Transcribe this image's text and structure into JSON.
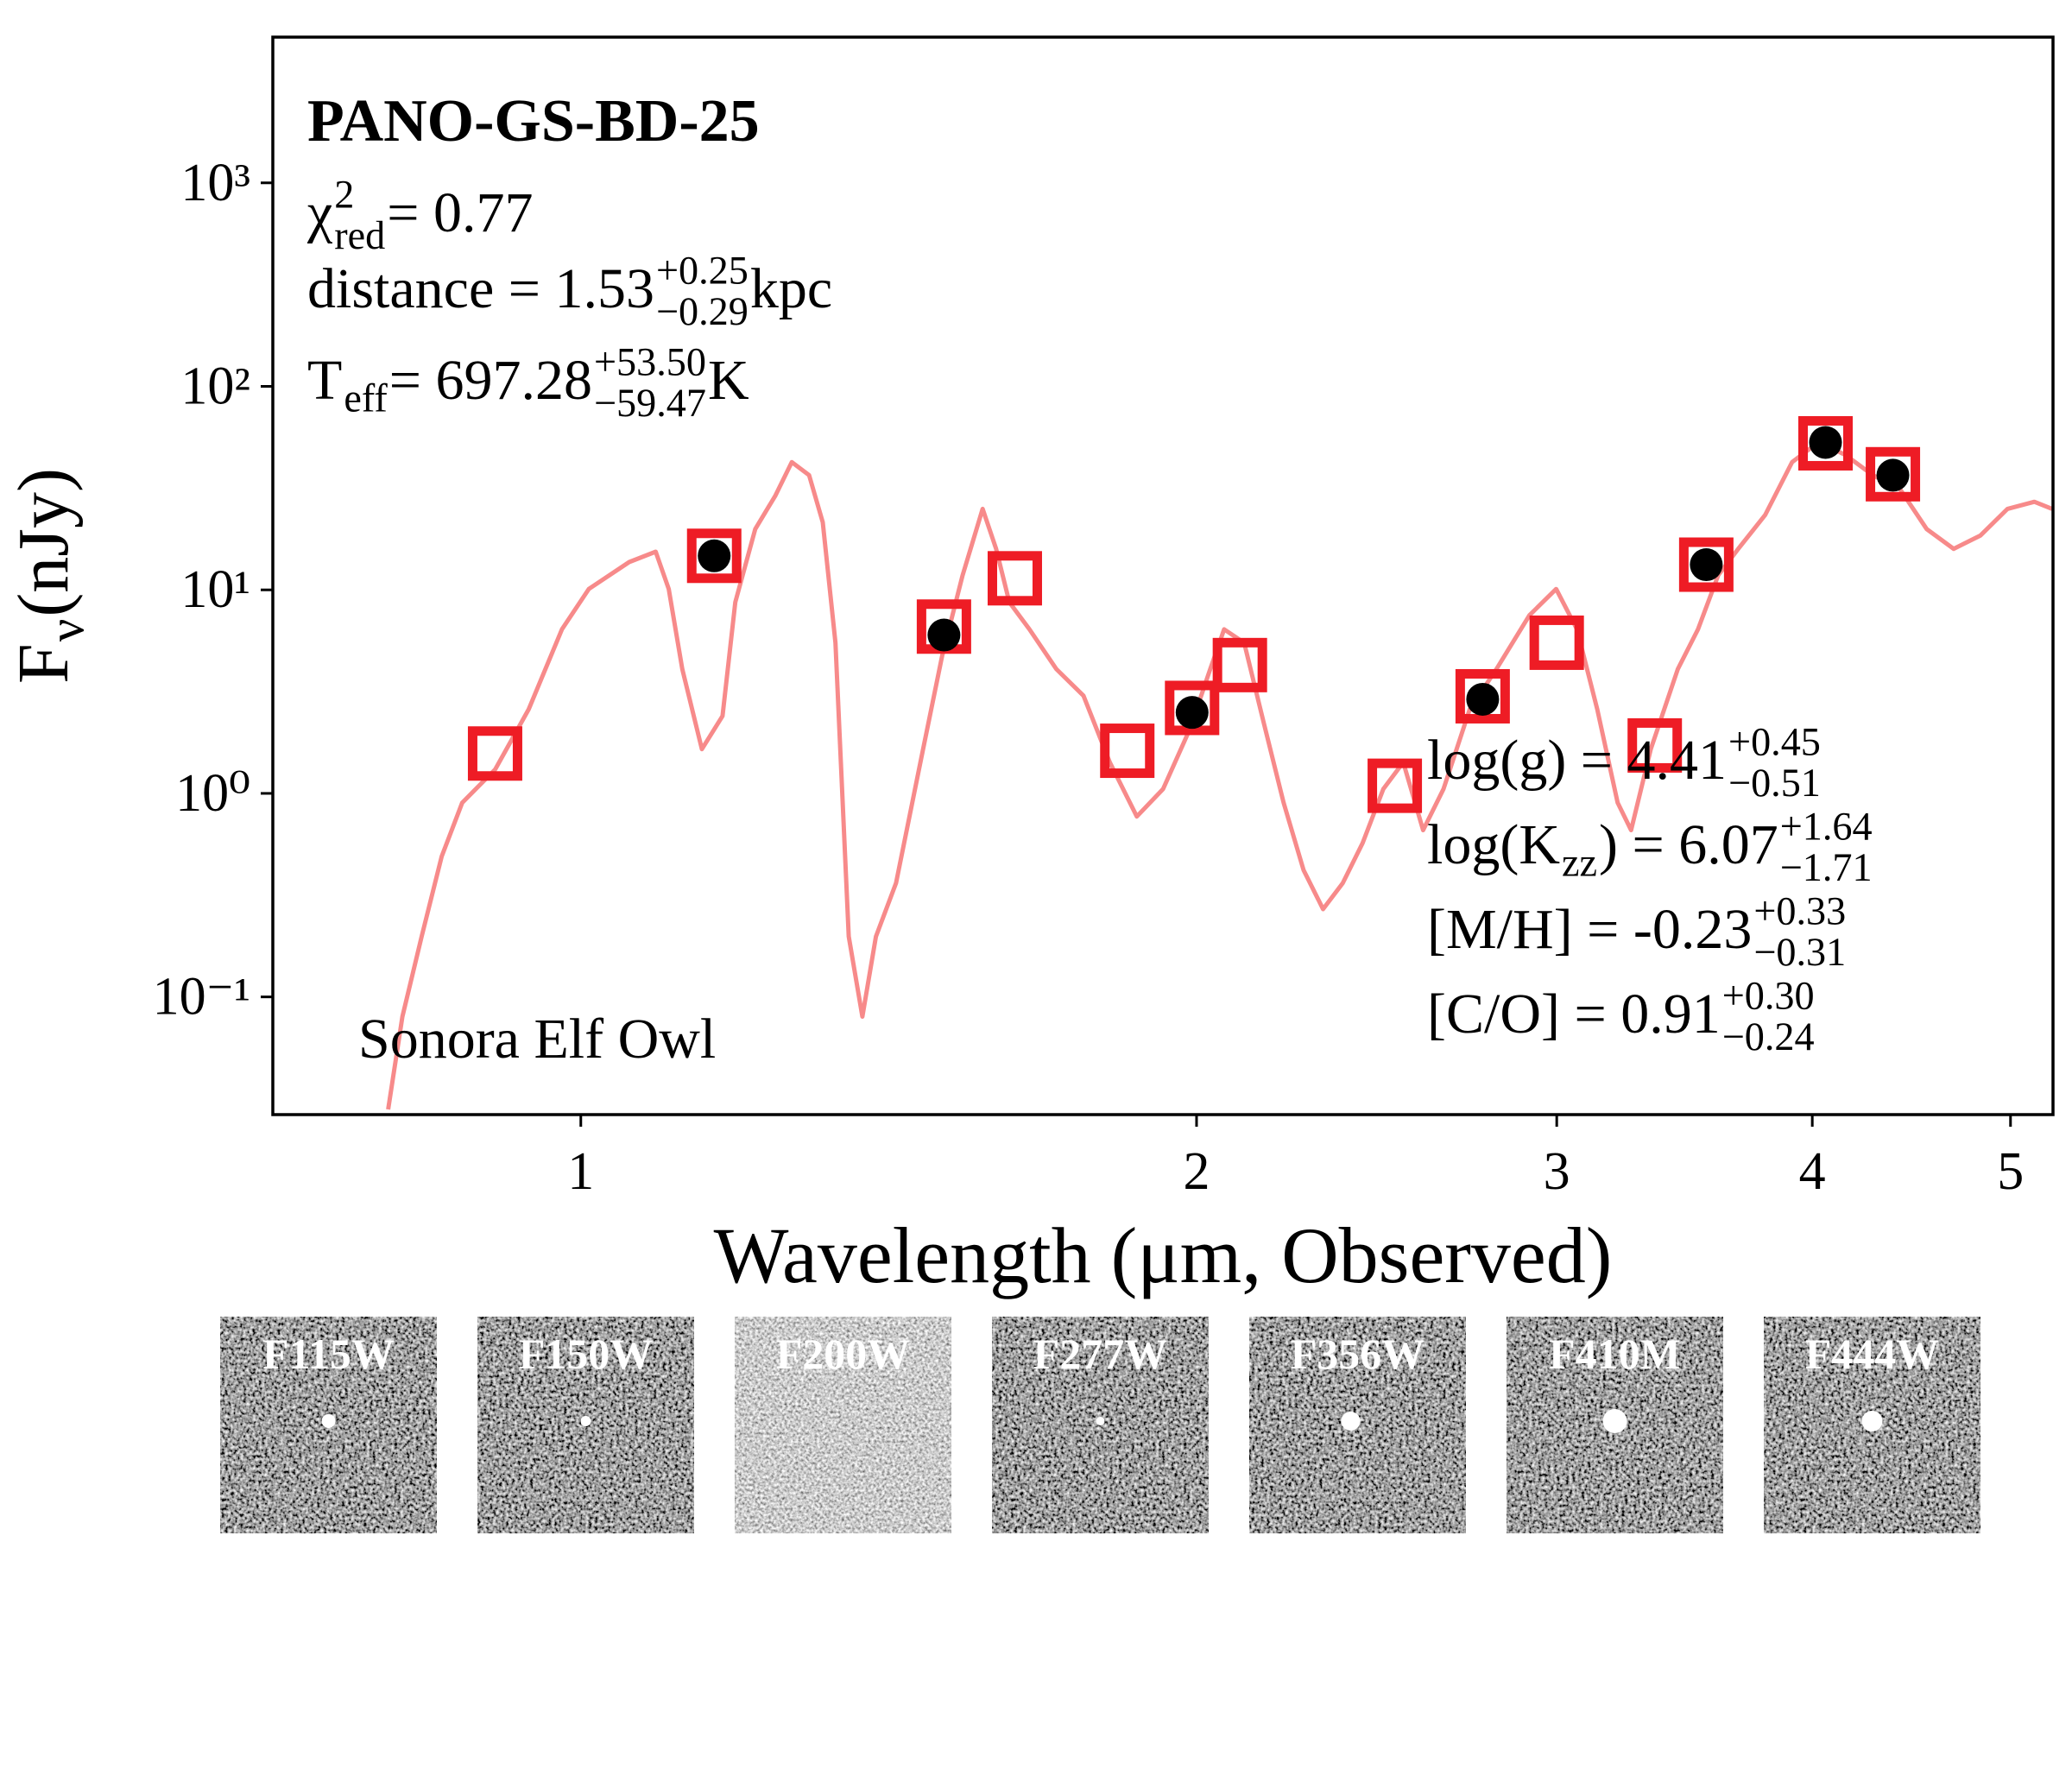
{
  "chart_data": {
    "type": "line",
    "title": "PANO-GS-BD-25",
    "xlabel": [
      {
        "t": "Wavelength ("
      },
      {
        "t": "μm"
      },
      {
        "t": ", Observed)"
      }
    ],
    "ylabel": [
      {
        "t": "F"
      },
      {
        "sub": "ν"
      },
      {
        "t": " (nJy)"
      }
    ],
    "xscale": "log",
    "yscale": "log",
    "xlim": [
      0.707,
      5.245
    ],
    "ylim": [
      0.0264,
      5200
    ],
    "xticks": [
      1,
      2,
      3,
      4,
      5
    ],
    "yticks": [
      {
        "value": 0.1,
        "label": "10⁻¹"
      },
      {
        "value": 1,
        "label": "10⁰"
      },
      {
        "value": 10,
        "label": "10¹"
      },
      {
        "value": 100,
        "label": "10²"
      },
      {
        "value": 1000,
        "label": "10³"
      }
    ],
    "grid": false,
    "series": [
      {
        "type": "line",
        "color": "#f67575",
        "x": [
          0.805,
          0.818,
          0.836,
          0.855,
          0.875,
          0.908,
          0.943,
          0.979,
          1.009,
          1.056,
          1.088,
          1.104,
          1.121,
          1.146,
          1.173,
          1.19,
          1.217,
          1.245,
          1.268,
          1.293,
          1.313,
          1.332,
          1.352,
          1.373,
          1.394,
          1.426,
          1.47,
          1.502,
          1.537,
          1.572,
          1.596,
          1.62,
          1.657,
          1.708,
          1.761,
          1.814,
          1.87,
          1.926,
          1.985,
          2.031,
          2.063,
          2.11,
          2.157,
          2.206,
          2.256,
          2.306,
          2.358,
          2.411,
          2.468,
          2.524,
          2.581,
          2.641,
          2.72,
          2.803,
          2.909,
          2.998,
          3.069,
          3.14,
          3.213,
          3.262,
          3.335,
          3.438,
          3.517,
          3.598,
          3.68,
          3.793,
          3.91,
          4.03,
          4.154,
          4.282,
          4.414,
          4.55,
          4.69,
          4.834,
          4.983,
          5.136,
          5.24
        ],
        "values": [
          0.028,
          0.08,
          0.198,
          0.49,
          0.9,
          1.31,
          2.59,
          6.4,
          10.1,
          13.7,
          15.4,
          10.1,
          4.08,
          1.65,
          2.4,
          8.7,
          19.9,
          29.1,
          42.4,
          36.6,
          21.5,
          5.5,
          0.198,
          0.08,
          0.198,
          0.363,
          1.65,
          4.74,
          11.8,
          25,
          15.9,
          8.7,
          6.4,
          4.08,
          3.02,
          1.42,
          0.77,
          1.05,
          2.07,
          4.08,
          6.4,
          5.5,
          2.23,
          0.9,
          0.42,
          0.27,
          0.363,
          0.57,
          1.05,
          1.42,
          0.66,
          1.05,
          2.59,
          4.08,
          7.5,
          10.1,
          6.4,
          2.59,
          0.9,
          0.66,
          1.65,
          4.08,
          6.4,
          11.8,
          15.9,
          23.3,
          42.4,
          53.4,
          45.9,
          36.6,
          31.4,
          19.9,
          15.9,
          18.5,
          25,
          27.1,
          25
        ]
      },
      {
        "type": "scatter",
        "marker": "square",
        "color": "#ee1c25",
        "x": [
          0.908,
          1.162,
          1.505,
          1.63,
          1.85,
          1.99,
          2.1,
          2.5,
          2.76,
          3.0,
          3.35,
          3.55,
          4.06,
          4.38
        ],
        "values": [
          1.57,
          14.7,
          6.6,
          11.4,
          1.62,
          2.63,
          4.27,
          1.09,
          3.0,
          5.5,
          1.72,
          13.3,
          52.5,
          37
        ]
      },
      {
        "type": "scatter",
        "marker": "circle",
        "color": "#000000",
        "x": [
          1.162,
          1.505,
          1.99,
          2.76,
          3.55,
          4.06,
          4.38
        ],
        "values": [
          14.7,
          6.0,
          2.5,
          2.9,
          13.3,
          53,
          36.6
        ]
      }
    ],
    "annotations": [
      [
        {
          "t": "χ"
        },
        {
          "sup": "2",
          "sub": "red"
        },
        {
          "t": " = 0.77"
        }
      ],
      [
        {
          "t": "distance = 1.53"
        },
        {
          "sup": "+0.25",
          "sub": "−0.29"
        },
        {
          "t": " kpc"
        }
      ],
      [
        {
          "t": "T"
        },
        {
          "sub": "eff"
        },
        {
          "t": " = 697.28"
        },
        {
          "sup": "+53.50",
          "sub": "−59.47"
        },
        {
          "t": " K"
        }
      ],
      [
        {
          "t": "log(g) = 4.41"
        },
        {
          "sup": "+0.45",
          "sub": "−0.51"
        }
      ],
      [
        {
          "t": "log(K"
        },
        {
          "sub": "zz"
        },
        {
          "t": ") = 6.07"
        },
        {
          "sup": "+1.64",
          "sub": "−1.71"
        }
      ],
      [
        {
          "t": "[M/H] = -0.23"
        },
        {
          "sup": "+0.33",
          "sub": "−0.31"
        }
      ],
      [
        {
          "t": "[C/O] = 0.91"
        },
        {
          "sup": "+0.30",
          "sub": "−0.24"
        }
      ],
      [
        {
          "t": "Sonora Elf Owl"
        }
      ]
    ]
  },
  "cutouts": [
    "F115W",
    "F150W",
    "F200W",
    "F277W",
    "F356W",
    "F410M",
    "F444W"
  ]
}
